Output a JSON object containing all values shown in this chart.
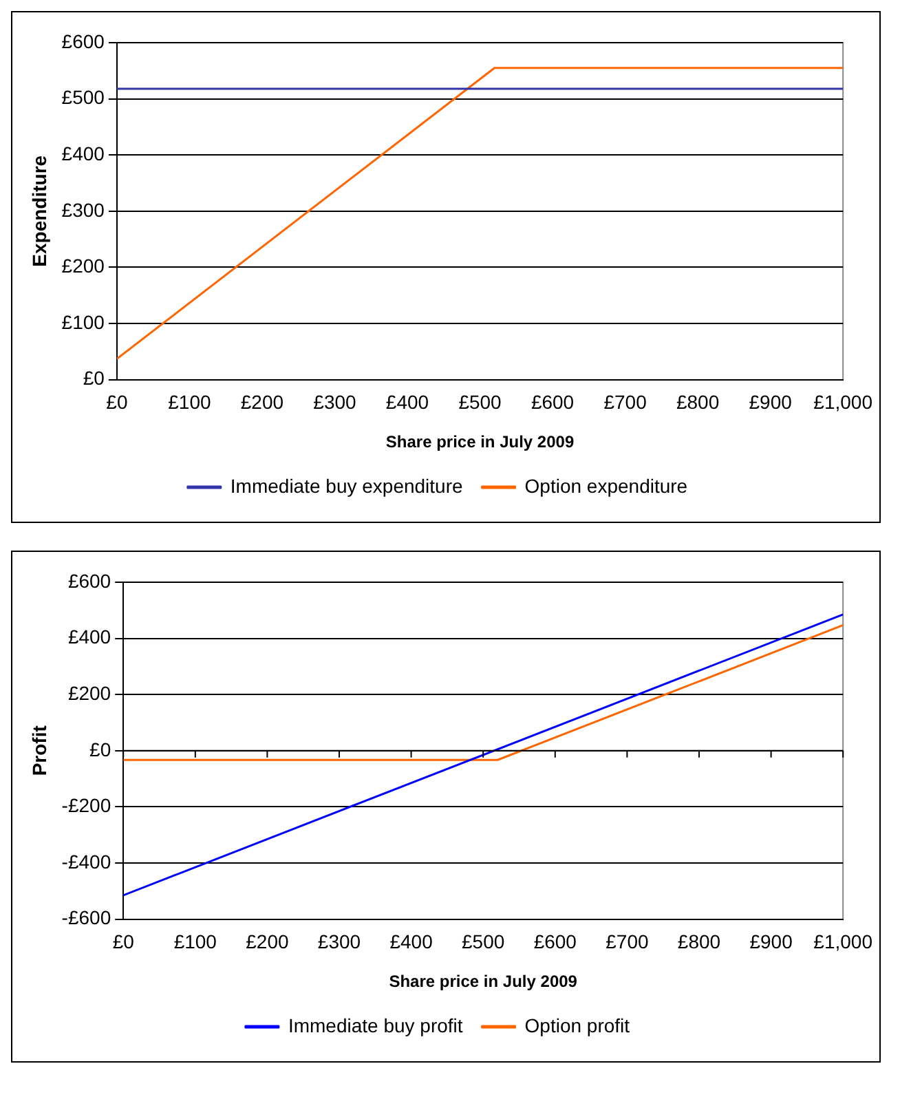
{
  "chart_data": [
    {
      "type": "line",
      "xlabel": "Share price in July 2009",
      "ylabel": "Expenditure",
      "xlim": [
        0,
        1000
      ],
      "ylim": [
        0,
        600
      ],
      "xticks": [
        {
          "value": 0,
          "label": "£0"
        },
        {
          "value": 100,
          "label": "£100"
        },
        {
          "value": 200,
          "label": "£200"
        },
        {
          "value": 300,
          "label": "£300"
        },
        {
          "value": 400,
          "label": "£400"
        },
        {
          "value": 500,
          "label": "£500"
        },
        {
          "value": 600,
          "label": "£600"
        },
        {
          "value": 700,
          "label": "£700"
        },
        {
          "value": 800,
          "label": "£800"
        },
        {
          "value": 900,
          "label": "£900"
        },
        {
          "value": 1000,
          "label": "£1,000"
        }
      ],
      "yticks": [
        {
          "value": 0,
          "label": "£0"
        },
        {
          "value": 100,
          "label": "£100"
        },
        {
          "value": 200,
          "label": "£200"
        },
        {
          "value": 300,
          "label": "£300"
        },
        {
          "value": 400,
          "label": "£400"
        },
        {
          "value": 500,
          "label": "£500"
        },
        {
          "value": 600,
          "label": "£600"
        }
      ],
      "grid": "y",
      "legend": "bottom",
      "marker": "none",
      "line_style": "solid",
      "series": [
        {
          "name": "Immediate buy expenditure",
          "color": "#3333aa",
          "x": [
            0,
            1000
          ],
          "values": [
            518,
            518
          ]
        },
        {
          "name": "Option expenditure",
          "color": "#ff6600",
          "x": [
            0,
            520,
            1000
          ],
          "values": [
            37,
            555,
            555
          ]
        }
      ]
    },
    {
      "type": "line",
      "xlabel": "Share price in July 2009",
      "ylabel": "Profit",
      "xlim": [
        0,
        1000
      ],
      "ylim": [
        -600,
        600
      ],
      "xticks": [
        {
          "value": 0,
          "label": "£0"
        },
        {
          "value": 100,
          "label": "£100"
        },
        {
          "value": 200,
          "label": "£200"
        },
        {
          "value": 300,
          "label": "£300"
        },
        {
          "value": 400,
          "label": "£400"
        },
        {
          "value": 500,
          "label": "£500"
        },
        {
          "value": 600,
          "label": "£600"
        },
        {
          "value": 700,
          "label": "£700"
        },
        {
          "value": 800,
          "label": "£800"
        },
        {
          "value": 900,
          "label": "£900"
        },
        {
          "value": 1000,
          "label": "£1,000"
        }
      ],
      "yticks": [
        {
          "value": -600,
          "label": "-£600"
        },
        {
          "value": -400,
          "label": "-£400"
        },
        {
          "value": -200,
          "label": "-£200"
        },
        {
          "value": 0,
          "label": "£0"
        },
        {
          "value": 200,
          "label": "£200"
        },
        {
          "value": 400,
          "label": "£400"
        },
        {
          "value": 600,
          "label": "£600"
        }
      ],
      "grid": "y",
      "legend": "bottom",
      "marker": "none",
      "line_style": "solid",
      "series": [
        {
          "name": "Immediate buy profit",
          "color": "#0000ff",
          "x": [
            0,
            1000
          ],
          "values": [
            -515,
            485
          ]
        },
        {
          "name": "Option profit",
          "color": "#ff6600",
          "x": [
            0,
            520,
            1000
          ],
          "values": [
            -33,
            -33,
            447
          ]
        }
      ]
    }
  ]
}
